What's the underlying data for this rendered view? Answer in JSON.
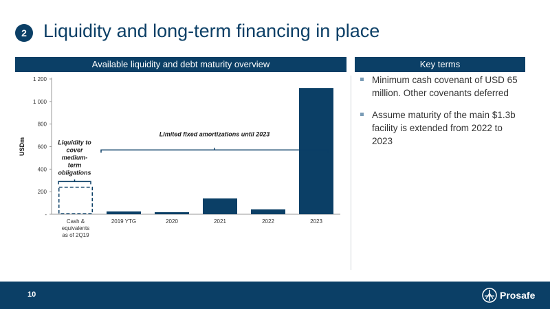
{
  "slide": {
    "section_number": "2",
    "title": "Liquidity and long-term financing in place",
    "left_header": "Available liquidity and debt maturity overview",
    "right_header": "Key terms",
    "page_number": "10",
    "brand": "Prosafe"
  },
  "key_terms": [
    "Minimum cash covenant of USD 65 million. Other covenants deferred",
    "Assume maturity of the main $1.3b facility is extended from 2022 to 2023"
  ],
  "colors": {
    "navy": "#0b3f66",
    "bar": "#0b3f66",
    "text": "#333333",
    "bullet": "#7a9cb6"
  },
  "chart_data": {
    "type": "bar",
    "ylabel": "USDm",
    "ylim": [
      0,
      1200
    ],
    "yticks": [
      0,
      200,
      400,
      600,
      800,
      1000,
      1200
    ],
    "ytick_labels": [
      "-",
      "200",
      "400",
      "600",
      "800",
      "1 000",
      "1 200"
    ],
    "categories": [
      "Cash & equivalents as of 2Q19",
      "2019 YTG",
      "2020",
      "2021",
      "2022",
      "2023"
    ],
    "category_label_lines": [
      [
        "Cash &",
        "equivalents",
        "as of 2Q19"
      ],
      [
        "2019 YTG"
      ],
      [
        "2020"
      ],
      [
        "2021"
      ],
      [
        "2022"
      ],
      [
        "2023"
      ]
    ],
    "values": [
      240,
      25,
      18,
      140,
      43,
      1120
    ],
    "dashed_bar_index": 0,
    "annotations": [
      {
        "text_lines": [
          "Liquidity to",
          "cover",
          "medium-",
          "term",
          "obligations"
        ],
        "bracket_from": 0,
        "bracket_to": 0,
        "bracket_value": 290
      },
      {
        "text_lines": [
          "Limited fixed amortizations until 2023"
        ],
        "bracket_from": 1,
        "bracket_to": 5,
        "bracket_value": 570
      }
    ]
  }
}
